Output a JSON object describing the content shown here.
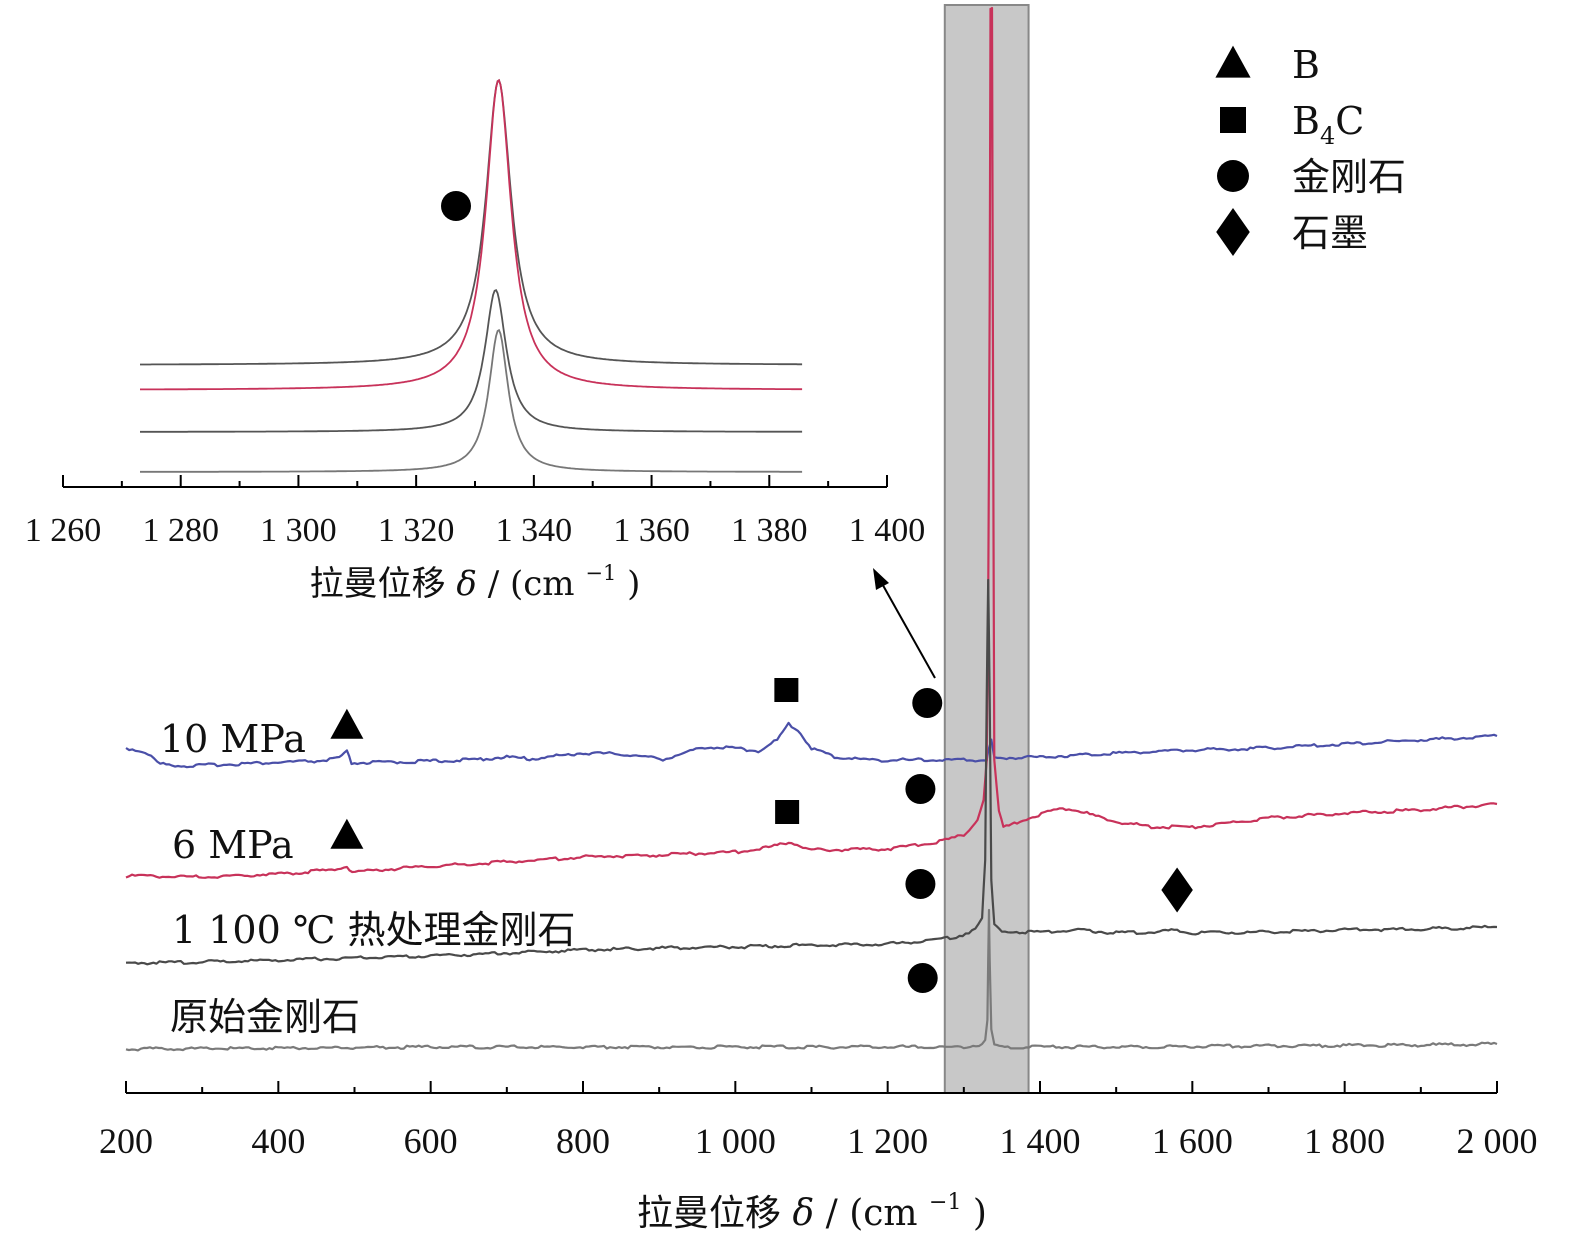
{
  "chart_data": [
    {
      "type": "line",
      "title": "",
      "xlabel": "拉曼位移 δ / (cm⁻¹)",
      "ylabel": "",
      "xlim": [
        200,
        2000
      ],
      "x_ticks": [
        200,
        400,
        600,
        800,
        1000,
        1200,
        1400,
        1600,
        1800,
        2000
      ],
      "x_tick_labels": [
        "200",
        "400",
        "600",
        "800",
        "1 000",
        "1 200",
        "1 400",
        "1 600",
        "1 800",
        "2 000"
      ],
      "grid": false,
      "highlight_band": [
        1275,
        1385
      ],
      "series": [
        {
          "name": "10 MPa",
          "color": "#4a4fa8",
          "points": [
            [
              200,
              748
            ],
            [
              225,
              752
            ],
            [
              245,
              764
            ],
            [
              280,
              766
            ],
            [
              340,
              764
            ],
            [
              455,
              761
            ],
            [
              480,
              758
            ],
            [
              490,
              752
            ],
            [
              496,
              763
            ],
            [
              560,
              762
            ],
            [
              650,
              760
            ],
            [
              700,
              757
            ],
            [
              730,
              759
            ],
            [
              800,
              753
            ],
            [
              850,
              754
            ],
            [
              905,
              759
            ],
            [
              925,
              755
            ],
            [
              960,
              747
            ],
            [
              1000,
              748
            ],
            [
              1030,
              751
            ],
            [
              1055,
              740
            ],
            [
              1070,
              724
            ],
            [
              1082,
              730
            ],
            [
              1100,
              748
            ],
            [
              1130,
              757
            ],
            [
              1180,
              760
            ],
            [
              1240,
              760
            ],
            [
              1300,
              760
            ],
            [
              1330,
              760
            ],
            [
              1332,
              752
            ],
            [
              1336,
              740
            ],
            [
              1340,
              758
            ],
            [
              1400,
              757
            ],
            [
              1500,
              753
            ],
            [
              1600,
              750
            ],
            [
              1700,
              748
            ],
            [
              1800,
              744
            ],
            [
              1900,
              740
            ],
            [
              2000,
              736
            ]
          ],
          "annotations": [
            {
              "marker": "triangle",
              "x": 490
            },
            {
              "marker": "square",
              "x": 1067
            },
            {
              "marker": "circle",
              "x": 1252
            }
          ]
        },
        {
          "name": "6 MPa",
          "color": "#c8325a",
          "points": [
            [
              200,
              876
            ],
            [
              300,
              877
            ],
            [
              400,
              874
            ],
            [
              470,
              870
            ],
            [
              490,
              866
            ],
            [
              497,
              872
            ],
            [
              600,
              866
            ],
            [
              700,
              862
            ],
            [
              800,
              857
            ],
            [
              900,
              855
            ],
            [
              1000,
              852
            ],
            [
              1040,
              848
            ],
            [
              1070,
              842
            ],
            [
              1100,
              850
            ],
            [
              1200,
              849
            ],
            [
              1260,
              843
            ],
            [
              1300,
              835
            ],
            [
              1318,
              820
            ],
            [
              1326,
              800
            ],
            [
              1330,
              760
            ],
            [
              1332,
              600
            ],
            [
              1334,
              300
            ],
            [
              1335,
              8
            ],
            [
              1337,
              8
            ],
            [
              1338,
              300
            ],
            [
              1340,
              760
            ],
            [
              1346,
              812
            ],
            [
              1352,
              828
            ],
            [
              1370,
              822
            ],
            [
              1410,
              812
            ],
            [
              1430,
              808
            ],
            [
              1450,
              811
            ],
            [
              1500,
              822
            ],
            [
              1550,
              827
            ],
            [
              1600,
              827
            ],
            [
              1650,
              823
            ],
            [
              1700,
              818
            ],
            [
              1800,
              813
            ],
            [
              1900,
              810
            ],
            [
              2000,
              804
            ]
          ],
          "annotations": [
            {
              "marker": "triangle",
              "x": 490
            },
            {
              "marker": "square",
              "x": 1068
            },
            {
              "marker": "circle",
              "x": 1243
            }
          ]
        },
        {
          "name": "1 100 ℃ 热处理金刚石",
          "color": "#4a4a4a",
          "points": [
            [
              200,
              963
            ],
            [
              300,
              962
            ],
            [
              400,
              960
            ],
            [
              500,
              958
            ],
            [
              600,
              956
            ],
            [
              700,
              953
            ],
            [
              800,
              950
            ],
            [
              900,
              948
            ],
            [
              1000,
              947
            ],
            [
              1100,
              945
            ],
            [
              1200,
              944
            ],
            [
              1250,
              941
            ],
            [
              1290,
              937
            ],
            [
              1315,
              930
            ],
            [
              1324,
              918
            ],
            [
              1328,
              860
            ],
            [
              1330,
              700
            ],
            [
              1332,
              580
            ],
            [
              1334,
              700
            ],
            [
              1336,
              880
            ],
            [
              1340,
              925
            ],
            [
              1350,
              932
            ],
            [
              1400,
              932
            ],
            [
              1450,
              930
            ],
            [
              1500,
              933
            ],
            [
              1550,
              932
            ],
            [
              1580,
              930
            ],
            [
              1600,
              933
            ],
            [
              1700,
              932
            ],
            [
              1800,
              930
            ],
            [
              1900,
              929
            ],
            [
              2000,
              927
            ]
          ],
          "annotations": [
            {
              "marker": "circle",
              "x": 1243
            },
            {
              "marker": "diamond",
              "x": 1580
            }
          ]
        },
        {
          "name": "原始金刚石",
          "color": "#7a7a7a",
          "points": [
            [
              200,
              1049
            ],
            [
              400,
              1048
            ],
            [
              600,
              1047
            ],
            [
              800,
              1047
            ],
            [
              1000,
              1047
            ],
            [
              1200,
              1047
            ],
            [
              1300,
              1047
            ],
            [
              1320,
              1045
            ],
            [
              1328,
              1040
            ],
            [
              1331,
              1020
            ],
            [
              1332,
              960
            ],
            [
              1333,
              910
            ],
            [
              1334,
              960
            ],
            [
              1336,
              1030
            ],
            [
              1340,
              1045
            ],
            [
              1350,
              1047
            ],
            [
              1500,
              1047
            ],
            [
              1700,
              1046
            ],
            [
              1900,
              1045
            ],
            [
              2000,
              1044
            ]
          ],
          "annotations": [
            {
              "marker": "circle",
              "x": 1246
            }
          ]
        }
      ],
      "legend": {
        "placement": "top-right",
        "items": [
          {
            "marker": "triangle",
            "label_main": "B",
            "label_sub": ""
          },
          {
            "marker": "square",
            "label_main": "B",
            "label_sub": "4",
            "label_tail": "C"
          },
          {
            "marker": "circle",
            "label_main": "金刚石",
            "label_sub": ""
          },
          {
            "marker": "diamond",
            "label_main": "石墨",
            "label_sub": ""
          }
        ]
      }
    },
    {
      "type": "line",
      "title": "",
      "xlabel": "拉曼位移 δ / (cm⁻¹)",
      "xlim": [
        1260,
        1400
      ],
      "x_ticks": [
        1260,
        1280,
        1300,
        1320,
        1340,
        1360,
        1380,
        1400
      ],
      "x_tick_labels": [
        "1 260",
        "1 280",
        "1 300",
        "1 320",
        "1 340",
        "1 360",
        "1 380",
        "1 400"
      ],
      "note_marker": "circle",
      "series": [
        {
          "color": "#555555",
          "baseline": 365,
          "peak_center": 1334,
          "width": 2.6,
          "peak_top": 80,
          "clip": true
        },
        {
          "color": "#c8325a",
          "baseline": 390,
          "peak_center": 1334,
          "width": 2.6,
          "peak_top": 80,
          "clip": true
        },
        {
          "color": "#555555",
          "baseline": 432,
          "peak_center": 1333.5,
          "width": 2.2,
          "peak_top": 290,
          "clip": false
        },
        {
          "color": "#777777",
          "baseline": 472,
          "peak_center": 1334,
          "width": 2.0,
          "peak_top": 330,
          "clip": false
        }
      ]
    }
  ],
  "labels": {
    "main_xlabel_prefix": "拉曼位移 ",
    "main_xlabel_delta": "δ",
    "main_xlabel_suffix": " / (cm",
    "main_xlabel_sup": "−1",
    "main_xlabel_close": ")"
  }
}
